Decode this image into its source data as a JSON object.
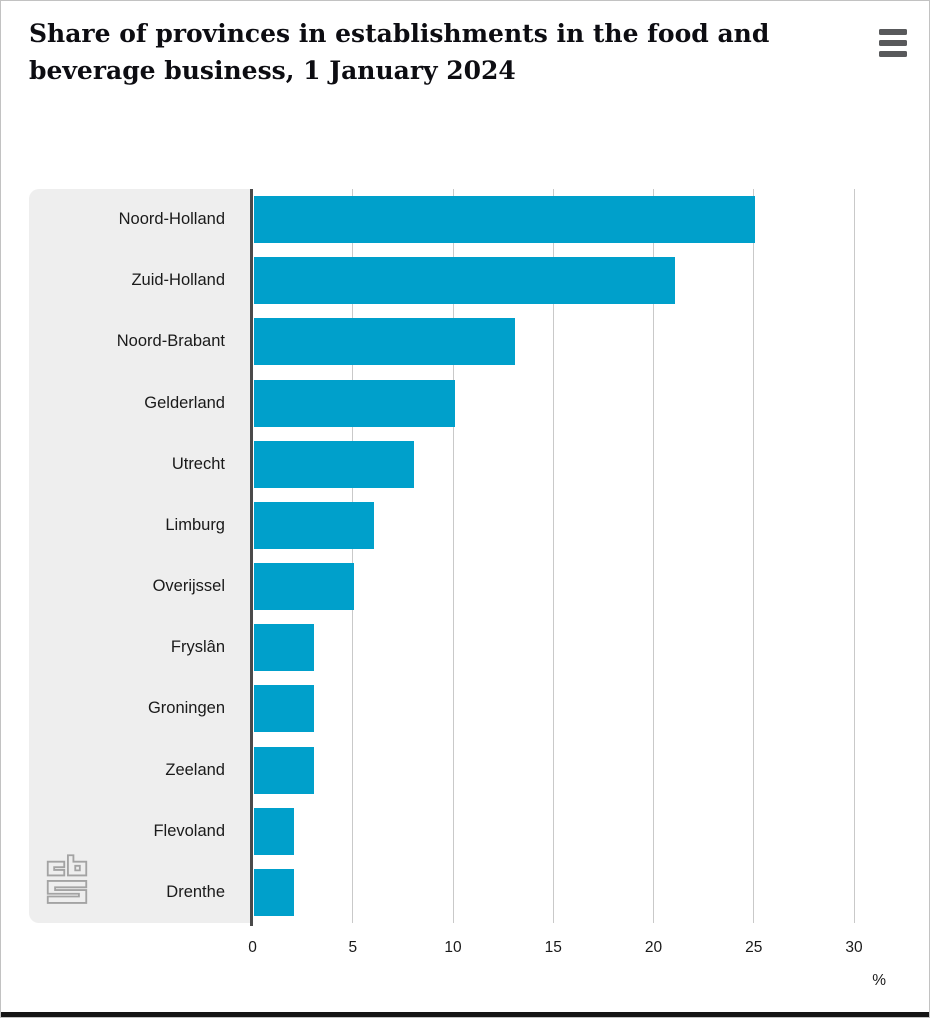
{
  "header": {
    "title": "Share of provinces in establishments in the food and beverage business, 1 January 2024"
  },
  "chart_data": {
    "type": "bar",
    "orientation": "horizontal",
    "title": "Share of provinces in establishments in the food and beverage business, 1 January 2024",
    "categories": [
      "Noord-Holland",
      "Zuid-Holland",
      "Noord-Brabant",
      "Gelderland",
      "Utrecht",
      "Limburg",
      "Overijssel",
      "Fryslân",
      "Groningen",
      "Zeeland",
      "Flevoland",
      "Drenthe"
    ],
    "values": [
      25,
      21,
      13,
      10,
      8,
      6,
      5,
      3,
      3,
      3,
      2,
      2
    ],
    "xlabel": "%",
    "x_ticks": [
      0,
      5,
      10,
      15,
      20,
      25,
      30
    ],
    "xlim": [
      0,
      31.3
    ],
    "grid": true,
    "legend_position": "none",
    "colors": {
      "bar": "#00a0cb",
      "label_panel": "#eeeeee",
      "axis": "#4a4a4a",
      "gridline": "#c9c9c9",
      "text": "#1a1a1a",
      "title": "#0d0d12",
      "menu_icon": "#58595b",
      "logo": "#a3a3a3",
      "bottom_strip": "#151515"
    }
  },
  "icons": {
    "menu": "hamburger-icon",
    "logo": "cbs-logo"
  }
}
